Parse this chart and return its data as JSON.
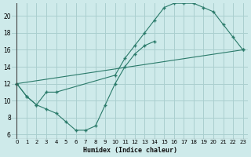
{
  "xlabel": "Humidex (Indice chaleur)",
  "background_color": "#ceeaea",
  "grid_color": "#aacfcf",
  "line_color": "#2a7a6a",
  "xlim": [
    -0.5,
    23.5
  ],
  "ylim": [
    5.5,
    21.5
  ],
  "xticks": [
    0,
    1,
    2,
    3,
    4,
    5,
    6,
    7,
    8,
    9,
    10,
    11,
    12,
    13,
    14,
    15,
    16,
    17,
    18,
    19,
    20,
    21,
    22,
    23
  ],
  "yticks": [
    6,
    8,
    10,
    12,
    14,
    16,
    18,
    20
  ],
  "series": [
    {
      "x": [
        0,
        1,
        2,
        3,
        4,
        5,
        6,
        7,
        8,
        9,
        10,
        11,
        12,
        13,
        14
      ],
      "y": [
        12,
        10.5,
        9.5,
        9.0,
        8.5,
        7.5,
        6.5,
        6.5,
        7.0,
        9.5,
        12.0,
        14.0,
        15.5,
        16.5,
        17.0
      ]
    },
    {
      "x": [
        0,
        1,
        2,
        3,
        4,
        10,
        11,
        12,
        13,
        14,
        15,
        16,
        17,
        18,
        19,
        20,
        21,
        22,
        23
      ],
      "y": [
        12,
        10.5,
        9.5,
        11.0,
        11.0,
        13.0,
        15.0,
        16.5,
        18.0,
        19.5,
        21.0,
        21.5,
        21.5,
        21.5,
        21.0,
        20.5,
        19.0,
        17.5,
        16.0
      ]
    },
    {
      "x": [
        0,
        23
      ],
      "y": [
        12,
        16.0
      ]
    }
  ]
}
